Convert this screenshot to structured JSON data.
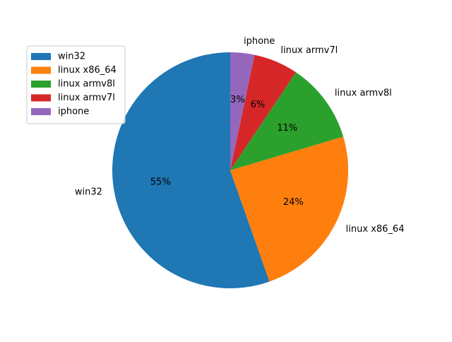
{
  "chart_data": {
    "type": "pie",
    "title": "",
    "categories": [
      "win32",
      "linux x86_64",
      "linux armv8l",
      "linux armv7l",
      "iphone"
    ],
    "values": [
      55.4,
      24.2,
      11.0,
      6.1,
      3.3
    ],
    "percent_labels": [
      "55%",
      "24%",
      "11%",
      "6%",
      "3%"
    ],
    "colors": [
      "#1f77b4",
      "#ff7f0e",
      "#2ca02c",
      "#d62728",
      "#9467bd"
    ],
    "start_angle_deg": 90,
    "direction": "counterclockwise",
    "legend": {
      "placement": "upper-left",
      "entries": [
        "win32",
        "linux x86_64",
        "linux armv8l",
        "linux armv7l",
        "iphone"
      ]
    }
  }
}
